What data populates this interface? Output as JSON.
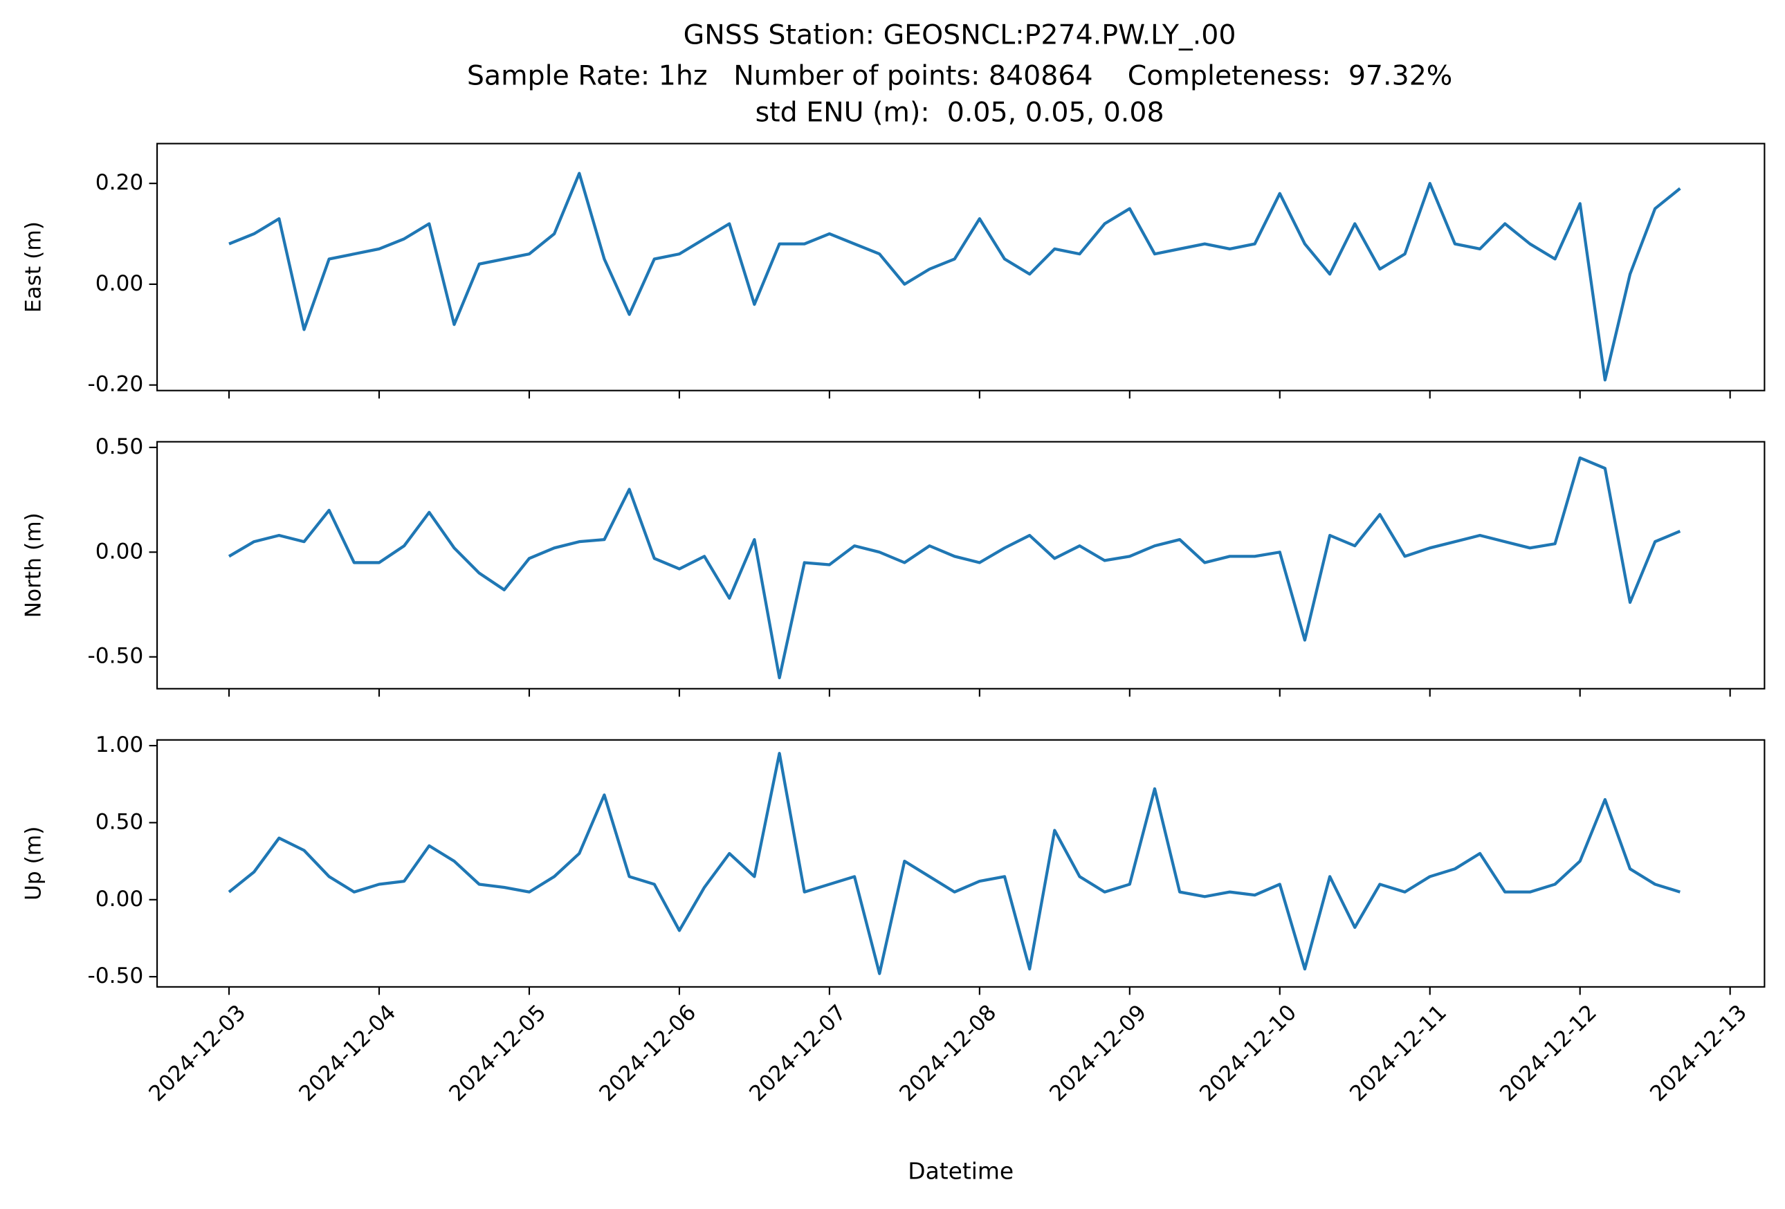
{
  "chart_data": [
    {
      "type": "line",
      "title": "GNSS Station: GEOSNCL:P274.PW.LY_.00",
      "subtitle": [
        "Sample Rate: 1hz   Number of points: 840864    Completeness:  97.32%",
        "std ENU (m):  0.05, 0.05, 0.08"
      ],
      "y_label": "East (m)",
      "sharex": true,
      "ylim": [
        -0.211,
        0.279
      ],
      "yticks": [
        {
          "value": -0.2,
          "label": "-0.20"
        },
        {
          "value": 0,
          "label": "0.00"
        },
        {
          "value": 0.2,
          "label": "0.20"
        }
      ],
      "series": [
        {
          "color": "#1f77b4",
          "values": [
            0.08,
            0.1,
            0.13,
            -0.09,
            0.05,
            0.06,
            0.07,
            0.09,
            0.12,
            -0.08,
            0.04,
            0.05,
            0.06,
            0.1,
            0.22,
            0.05,
            -0.06,
            0.05,
            0.06,
            0.09,
            0.12,
            -0.04,
            0.08,
            0.08,
            0.1,
            0.08,
            0.06,
            0.0,
            0.03,
            0.05,
            0.13,
            0.05,
            0.02,
            0.07,
            0.06,
            0.12,
            0.15,
            0.06,
            0.07,
            0.08,
            0.07,
            0.08,
            0.18,
            0.08,
            0.02,
            0.12,
            0.03,
            0.06,
            0.2,
            0.08,
            0.07,
            0.12,
            0.08,
            0.05,
            0.16,
            -0.19,
            0.02,
            0.15,
            0.19
          ]
        }
      ]
    },
    {
      "type": "line",
      "y_label": "North (m)",
      "sharex": true,
      "ylim": [
        -0.652,
        0.527
      ],
      "yticks": [
        {
          "value": -0.5,
          "label": "-0.50"
        },
        {
          "value": 0,
          "label": "0.00"
        },
        {
          "value": 0.5,
          "label": "0.50"
        }
      ],
      "series": [
        {
          "color": "#1f77b4",
          "values": [
            -0.02,
            0.05,
            0.08,
            0.05,
            0.2,
            -0.05,
            -0.05,
            0.03,
            0.19,
            0.02,
            -0.1,
            -0.18,
            -0.03,
            0.02,
            0.05,
            0.06,
            0.3,
            -0.03,
            -0.08,
            -0.02,
            -0.22,
            0.06,
            -0.6,
            -0.05,
            -0.06,
            0.03,
            0.0,
            -0.05,
            0.03,
            -0.02,
            -0.05,
            0.02,
            0.08,
            -0.03,
            0.03,
            -0.04,
            -0.02,
            0.03,
            0.06,
            -0.05,
            -0.02,
            -0.02,
            0.0,
            -0.42,
            0.08,
            0.03,
            0.18,
            -0.02,
            0.02,
            0.05,
            0.08,
            0.05,
            0.02,
            0.04,
            0.45,
            0.4,
            -0.24,
            0.05,
            0.1
          ]
        }
      ]
    },
    {
      "type": "line",
      "y_label": "Up (m)",
      "x_label": "Datetime",
      "ylim": [
        -0.566,
        1.037
      ],
      "yticks": [
        {
          "value": -0.5,
          "label": "-0.50"
        },
        {
          "value": 0,
          "label": "0.00"
        },
        {
          "value": 0.5,
          "label": "0.50"
        },
        {
          "value": 1,
          "label": "1.00"
        }
      ],
      "xlim": [
        "2024-12-02T12:30",
        "2024-12-13T05:30"
      ],
      "xticks": [
        "2024-12-03",
        "2024-12-04",
        "2024-12-05",
        "2024-12-06",
        "2024-12-07",
        "2024-12-08",
        "2024-12-09",
        "2024-12-10",
        "2024-12-11",
        "2024-12-12",
        "2024-12-13"
      ],
      "x": [
        "2024-12-03T00:00",
        "2024-12-03T04:00",
        "2024-12-03T08:00",
        "2024-12-03T12:00",
        "2024-12-03T16:00",
        "2024-12-03T20:00",
        "2024-12-04T00:00",
        "2024-12-04T04:00",
        "2024-12-04T08:00",
        "2024-12-04T12:00",
        "2024-12-04T16:00",
        "2024-12-04T20:00",
        "2024-12-05T00:00",
        "2024-12-05T04:00",
        "2024-12-05T08:00",
        "2024-12-05T12:00",
        "2024-12-05T16:00",
        "2024-12-05T20:00",
        "2024-12-06T00:00",
        "2024-12-06T04:00",
        "2024-12-06T08:00",
        "2024-12-06T12:00",
        "2024-12-06T16:00",
        "2024-12-06T20:00",
        "2024-12-07T00:00",
        "2024-12-07T04:00",
        "2024-12-07T08:00",
        "2024-12-07T12:00",
        "2024-12-07T16:00",
        "2024-12-07T20:00",
        "2024-12-08T00:00",
        "2024-12-08T04:00",
        "2024-12-08T08:00",
        "2024-12-08T12:00",
        "2024-12-08T16:00",
        "2024-12-08T20:00",
        "2024-12-09T00:00",
        "2024-12-09T04:00",
        "2024-12-09T08:00",
        "2024-12-09T12:00",
        "2024-12-09T16:00",
        "2024-12-09T20:00",
        "2024-12-10T00:00",
        "2024-12-10T04:00",
        "2024-12-10T08:00",
        "2024-12-10T12:00",
        "2024-12-10T16:00",
        "2024-12-10T20:00",
        "2024-12-11T00:00",
        "2024-12-11T04:00",
        "2024-12-11T08:00",
        "2024-12-11T12:00",
        "2024-12-11T16:00",
        "2024-12-11T20:00",
        "2024-12-12T00:00",
        "2024-12-12T04:00",
        "2024-12-12T08:00",
        "2024-12-12T12:00",
        "2024-12-12T16:00"
      ],
      "series": [
        {
          "color": "#1f77b4",
          "values": [
            0.05,
            0.18,
            0.4,
            0.32,
            0.15,
            0.05,
            0.1,
            0.12,
            0.35,
            0.25,
            0.1,
            0.08,
            0.05,
            0.15,
            0.3,
            0.68,
            0.15,
            0.1,
            -0.2,
            0.08,
            0.3,
            0.15,
            0.95,
            0.05,
            0.1,
            0.15,
            -0.48,
            0.25,
            0.15,
            0.05,
            0.12,
            0.15,
            -0.45,
            0.45,
            0.15,
            0.05,
            0.1,
            0.72,
            0.05,
            0.02,
            0.05,
            0.03,
            0.1,
            -0.45,
            0.15,
            -0.18,
            0.1,
            0.05,
            0.15,
            0.2,
            0.3,
            0.05,
            0.05,
            0.1,
            0.25,
            0.65,
            0.2,
            0.1,
            0.05
          ]
        }
      ]
    }
  ]
}
